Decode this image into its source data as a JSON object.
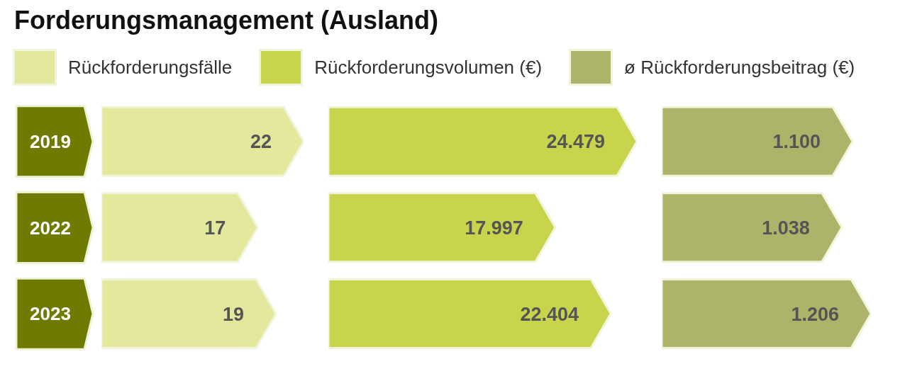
{
  "chart_data": [
    {
      "type": "bar",
      "orientation": "horizontal",
      "title": "Forderungsmanagement (Ausland)",
      "legend": "top",
      "categories": [
        "2019",
        "2022",
        "2023"
      ],
      "series": [
        {
          "name": "Rückforderungsfälle",
          "color": "#e3e89c",
          "values": [
            22,
            17,
            19
          ],
          "value_labels": [
            "22",
            "17",
            "19"
          ]
        }
      ]
    },
    {
      "type": "bar",
      "orientation": "horizontal",
      "legend": "top",
      "tick_labels": false,
      "categories": [
        "2019",
        "2022",
        "2023"
      ],
      "series": [
        {
          "name": "Rückforderungsvolumen (€)",
          "color": "#c8d44b",
          "values": [
            24479,
            17997,
            22404
          ],
          "value_labels": [
            "24.479",
            "17.997",
            "22.404"
          ]
        }
      ]
    },
    {
      "type": "bar",
      "orientation": "horizontal",
      "legend": "top",
      "tick_labels": false,
      "categories": [
        "2019",
        "2022",
        "2023"
      ],
      "series": [
        {
          "name": "ø Rückforderungsbeitrag (€)",
          "color": "#adb46a",
          "values": [
            1100,
            1038,
            1206
          ],
          "value_labels": [
            "1.100",
            "1.038",
            "1.206"
          ]
        }
      ]
    }
  ]
}
